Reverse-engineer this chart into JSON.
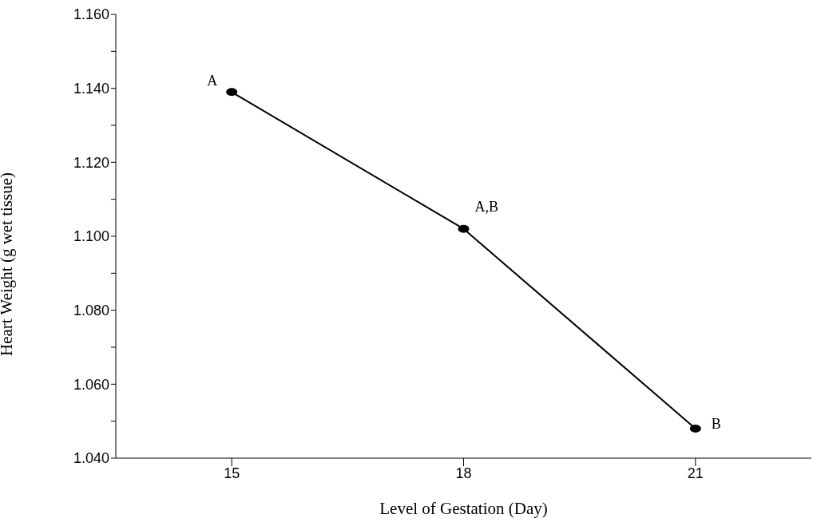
{
  "chart_data": {
    "type": "line",
    "xlabel": "Level of Gestation (Day)",
    "ylabel": "Heart Weight (g wet tissue)",
    "x": [
      15,
      18,
      21
    ],
    "series": [
      {
        "color": "#000000",
        "values": [
          1.139,
          1.102,
          1.048
        ]
      }
    ],
    "xlim": [
      13.5,
      22.5
    ],
    "xticks": [
      15,
      18,
      21
    ],
    "ylim": [
      1.04,
      1.16
    ],
    "yticks": [
      {
        "value": 1.04,
        "label": "1.040"
      },
      {
        "value": 1.05,
        "label": null
      },
      {
        "value": 1.06,
        "label": "1.060"
      },
      {
        "value": 1.07,
        "label": null
      },
      {
        "value": 1.08,
        "label": "1.080"
      },
      {
        "value": 1.09,
        "label": null
      },
      {
        "value": 1.1,
        "label": "1.100"
      },
      {
        "value": 1.11,
        "label": null
      },
      {
        "value": 1.12,
        "label": "1.120"
      },
      {
        "value": 1.13,
        "label": null
      },
      {
        "value": 1.14,
        "label": "1.140"
      },
      {
        "value": 1.15,
        "label": null
      },
      {
        "value": 1.16,
        "label": "1.160"
      }
    ],
    "marker": "circle",
    "line_style": "solid",
    "grid": false,
    "legend": false,
    "annotations": [
      {
        "text": "A",
        "x": 15,
        "y": 1.139
      },
      {
        "text": "A,B",
        "x": 18,
        "y": 1.102
      },
      {
        "text": "B",
        "x": 21,
        "y": 1.048
      }
    ]
  }
}
